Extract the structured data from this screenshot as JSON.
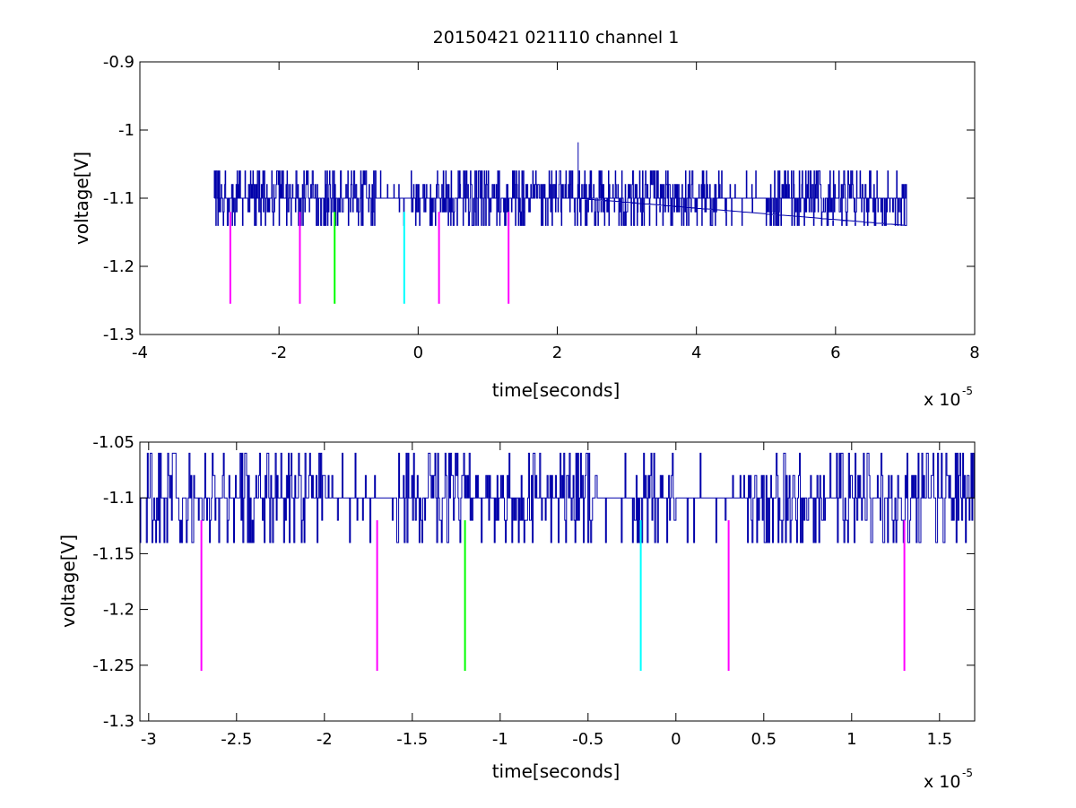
{
  "chart_data": [
    {
      "type": "line",
      "title": "20150421 021110 channel 1",
      "xlabel": "time[seconds]",
      "ylabel": "voltage[V]",
      "x_multiplier_label": "x 10",
      "x_multiplier_exponent": "-5",
      "xlim": [
        -4,
        8
      ],
      "ylim": [
        -1.3,
        -0.9
      ],
      "xticks": [
        -4,
        -2,
        0,
        2,
        4,
        6,
        8
      ],
      "xtick_labels": [
        "-4",
        "-2",
        "0",
        "2",
        "4",
        "6",
        "8"
      ],
      "yticks": [
        -0.9,
        -1,
        -1.1,
        -1.2,
        -1.3
      ],
      "ytick_labels": [
        "-0.9",
        "-1",
        "-1.1",
        "-1.2",
        "-1.3"
      ],
      "grid": false,
      "signal": {
        "color": "#0000aa",
        "x_start": -2.93,
        "x_end": 7.02,
        "baseline": -1.1,
        "levels": [
          -1.14,
          -1.12,
          -1.1,
          -1.08,
          -1.06
        ],
        "spike": {
          "x": 2.3,
          "y": -1.018
        }
      },
      "markers": [
        {
          "x": -2.7,
          "y_top": -1.12,
          "y_bottom": -1.255,
          "color": "#ff00ff"
        },
        {
          "x": -1.7,
          "y_top": -1.12,
          "y_bottom": -1.255,
          "color": "#ff00ff"
        },
        {
          "x": -1.2,
          "y_top": -1.12,
          "y_bottom": -1.255,
          "color": "#00ff00"
        },
        {
          "x": -0.2,
          "y_top": -1.12,
          "y_bottom": -1.255,
          "color": "#00ffff"
        },
        {
          "x": 0.3,
          "y_top": -1.12,
          "y_bottom": -1.255,
          "color": "#ff00ff"
        },
        {
          "x": 1.3,
          "y_top": -1.12,
          "y_bottom": -1.255,
          "color": "#ff00ff"
        }
      ]
    },
    {
      "type": "line",
      "title": "",
      "xlabel": "time[seconds]",
      "ylabel": "voltage[V]",
      "x_multiplier_label": "x 10",
      "x_multiplier_exponent": "-5",
      "xlim": [
        -3.05,
        1.7
      ],
      "ylim": [
        -1.3,
        -1.05
      ],
      "xticks": [
        -3,
        -2.5,
        -2,
        -1.5,
        -1,
        -0.5,
        0,
        0.5,
        1,
        1.5
      ],
      "xtick_labels": [
        "-3",
        "-2.5",
        "-2",
        "-1.5",
        "-1",
        "-0.5",
        "0",
        "0.5",
        "1",
        "1.5"
      ],
      "yticks": [
        -1.05,
        -1.1,
        -1.15,
        -1.2,
        -1.25,
        -1.3
      ],
      "ytick_labels": [
        "-1.05",
        "-1.1",
        "-1.15",
        "-1.2",
        "-1.25",
        "-1.3"
      ],
      "grid": false,
      "signal": {
        "color": "#0000aa",
        "x_start": -3.05,
        "x_end": 1.7,
        "baseline": -1.1,
        "levels": [
          -1.14,
          -1.12,
          -1.1,
          -1.08,
          -1.06
        ]
      },
      "markers": [
        {
          "x": -2.7,
          "y_top": -1.12,
          "y_bottom": -1.255,
          "color": "#ff00ff"
        },
        {
          "x": -1.7,
          "y_top": -1.12,
          "y_bottom": -1.255,
          "color": "#ff00ff"
        },
        {
          "x": -1.2,
          "y_top": -1.12,
          "y_bottom": -1.255,
          "color": "#00ff00"
        },
        {
          "x": -0.2,
          "y_top": -1.12,
          "y_bottom": -1.255,
          "color": "#00ffff"
        },
        {
          "x": 0.3,
          "y_top": -1.12,
          "y_bottom": -1.255,
          "color": "#ff00ff"
        },
        {
          "x": 1.3,
          "y_top": -1.12,
          "y_bottom": -1.255,
          "color": "#ff00ff"
        }
      ]
    }
  ]
}
